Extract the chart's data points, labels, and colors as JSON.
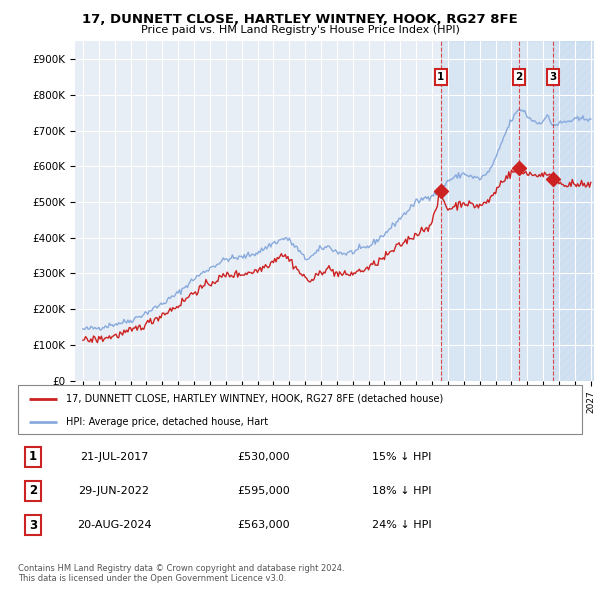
{
  "title": "17, DUNNETT CLOSE, HARTLEY WINTNEY, HOOK, RG27 8FE",
  "subtitle": "Price paid vs. HM Land Registry's House Price Index (HPI)",
  "ylim": [
    0,
    950000
  ],
  "yticks": [
    0,
    100000,
    200000,
    300000,
    400000,
    500000,
    600000,
    700000,
    800000,
    900000
  ],
  "ytick_labels": [
    "£0",
    "£100K",
    "£200K",
    "£300K",
    "£400K",
    "£500K",
    "£600K",
    "£700K",
    "£800K",
    "£900K"
  ],
  "legend_property_label": "17, DUNNETT CLOSE, HARTLEY WINTNEY, HOOK, RG27 8FE (detached house)",
  "legend_hpi_label": "HPI: Average price, detached house, Hart",
  "property_color": "#cc2222",
  "hpi_color": "#88aadd",
  "transactions": [
    {
      "id": 1,
      "date_label": "21-JUL-2017",
      "price": 530000,
      "price_label": "£530,000",
      "diff": "15% ↓ HPI",
      "x_approx": 2017.55
    },
    {
      "id": 2,
      "date_label": "29-JUN-2022",
      "price": 595000,
      "price_label": "£595,000",
      "diff": "18% ↓ HPI",
      "x_approx": 2022.49
    },
    {
      "id": 3,
      "date_label": "20-AUG-2024",
      "price": 563000,
      "price_label": "£563,000",
      "diff": "24% ↓ HPI",
      "x_approx": 2024.63
    }
  ],
  "plot_bg_color": "#e8eef5",
  "grid_color": "#ffffff",
  "copyright_text": "Contains HM Land Registry data © Crown copyright and database right 2024.\nThis data is licensed under the Open Government Licence v3.0.",
  "xlim_start": 1994.5,
  "xlim_end": 2027.2
}
